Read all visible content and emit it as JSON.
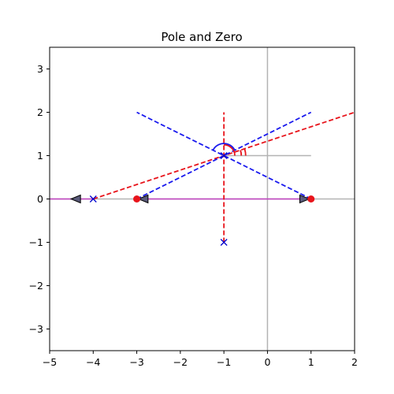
{
  "chart_data": {
    "type": "scatter",
    "title": "Pole and Zero",
    "xlabel": "",
    "ylabel": "",
    "xlim": [
      -5,
      2
    ],
    "ylim": [
      -3.5,
      3.5
    ],
    "xticks": [
      -5,
      -4,
      -3,
      -2,
      -1,
      0,
      1,
      2
    ],
    "yticks": [
      -3,
      -2,
      -1,
      0,
      1,
      2,
      3
    ],
    "xtick_labels": [
      "−5",
      "−4",
      "−3",
      "−2",
      "−1",
      "0",
      "1",
      "2"
    ],
    "ytick_labels": [
      "−3",
      "−2",
      "−1",
      "0",
      "1",
      "2",
      "3"
    ],
    "grid": false,
    "colors": {
      "axis_lines": "#b3b3b3",
      "poles": "#0000cc",
      "zeros": "#e8141b",
      "real_axis_locus": "#c040c0",
      "red_dashed": "#e8141b",
      "blue_dashed": "#1a1aee",
      "arrow_fill": "#5a5a7a",
      "angle_arc_red": "#e8141b",
      "angle_arc_blue": "#1a1aee"
    },
    "poles": [
      {
        "x": -4,
        "y": 0
      },
      {
        "x": -1,
        "y": 1
      },
      {
        "x": -1,
        "y": -1
      }
    ],
    "zeros": [
      {
        "x": -3,
        "y": 0
      },
      {
        "x": 1,
        "y": 0
      }
    ],
    "axis_lines": [
      {
        "from": [
          0,
          -3.5
        ],
        "to": [
          0,
          3.5
        ]
      },
      {
        "from": [
          -5,
          0
        ],
        "to": [
          2,
          0
        ]
      },
      {
        "from": [
          -1,
          1
        ],
        "to": [
          1,
          1
        ]
      }
    ],
    "real_axis_locus": [
      {
        "from": [
          -5,
          0
        ],
        "to": [
          -4,
          0
        ]
      },
      {
        "from": [
          -3,
          0
        ],
        "to": [
          1,
          0
        ]
      }
    ],
    "red_dashed_lines": [
      {
        "from": [
          -4,
          0
        ],
        "to": [
          2,
          2
        ]
      },
      {
        "from": [
          -1,
          -1
        ],
        "to": [
          -1,
          2
        ]
      }
    ],
    "blue_dashed_lines": [
      {
        "from": [
          -3,
          0
        ],
        "to": [
          1,
          2
        ]
      },
      {
        "from": [
          1,
          0
        ],
        "to": [
          -3,
          2
        ]
      }
    ],
    "arrows": [
      {
        "x": -4.4,
        "y": 0,
        "direction": "left"
      },
      {
        "x": -2.85,
        "y": 0,
        "direction": "left"
      },
      {
        "x": 0.85,
        "y": 0,
        "direction": "right"
      }
    ],
    "angle_arcs": [
      {
        "center": [
          -1,
          1
        ],
        "color": "red",
        "radius": 0.25,
        "start_deg": 0,
        "end_deg": 90
      },
      {
        "center": [
          -1,
          1
        ],
        "color": "red",
        "radius": 0.4,
        "start_deg": 0,
        "end_deg": 18.4
      },
      {
        "center": [
          -1,
          1
        ],
        "color": "red",
        "radius": 0.5,
        "start_deg": 0,
        "end_deg": 18.4
      },
      {
        "center": [
          -1,
          1
        ],
        "color": "blue",
        "radius": 0.28,
        "start_deg": 26.6,
        "end_deg": 153.4
      }
    ]
  }
}
